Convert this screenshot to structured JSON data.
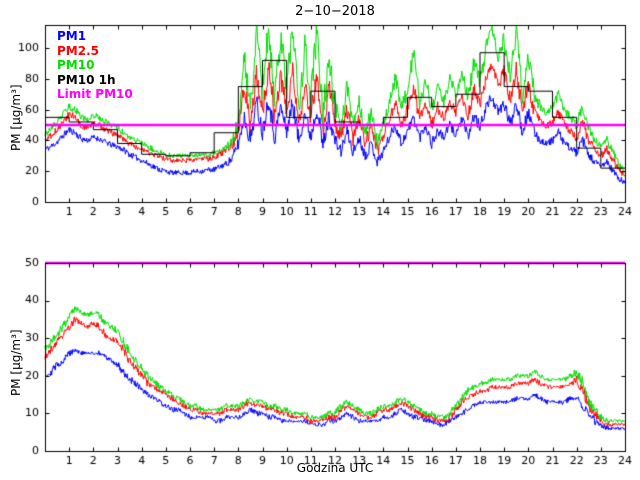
{
  "title": "2−10−2018",
  "xlabel": "Godzina UTC",
  "colors": {
    "pm1": "#0000ff",
    "pm25": "#ff0000",
    "pm10": "#00dd00",
    "pm10_1h": "#000000",
    "limit": "#ff00ff",
    "axis": "#000000",
    "background": "#ffffff"
  },
  "legend": {
    "entries": [
      {
        "label": "PM1",
        "color": "#0000ff"
      },
      {
        "label": "PM2.5",
        "color": "#ff0000"
      },
      {
        "label": "PM10",
        "color": "#00dd00"
      },
      {
        "label": "PM10 1h",
        "color": "#000000"
      },
      {
        "label": "Limit PM10",
        "color": "#ff00ff"
      }
    ]
  },
  "chart_data": [
    {
      "type": "line",
      "title": "2−10−2018",
      "xlabel": "",
      "ylabel": "PM [µg/m³]",
      "xlim": [
        0,
        24
      ],
      "ylim": [
        0,
        115
      ],
      "xticks": [
        1,
        2,
        3,
        4,
        5,
        6,
        7,
        8,
        9,
        10,
        11,
        12,
        13,
        14,
        15,
        16,
        17,
        18,
        19,
        20,
        21,
        22,
        23,
        24
      ],
      "yticks": [
        0,
        20,
        40,
        60,
        80,
        100
      ],
      "x_start": 0,
      "x_step": 0.25,
      "grid": false,
      "legend_position": "top-left-inside",
      "noise": {
        "base": 1.5,
        "factor": 0.18,
        "seed": 11
      },
      "series": [
        {
          "name": "PM1",
          "color": "#0000ff",
          "style": "line",
          "values": [
            34,
            36,
            39,
            43,
            47,
            45,
            41,
            40,
            42,
            41,
            39,
            37,
            36,
            34,
            31,
            29,
            27,
            25,
            23,
            21,
            20,
            19,
            19,
            19,
            19,
            20,
            20,
            21,
            21,
            23,
            25,
            28,
            38,
            55,
            40,
            65,
            45,
            68,
            42,
            62,
            46,
            65,
            40,
            58,
            42,
            62,
            36,
            55,
            40,
            33,
            46,
            32,
            42,
            30,
            38,
            26,
            33,
            42,
            50,
            38,
            46,
            55,
            42,
            50,
            38,
            46,
            42,
            50,
            44,
            54,
            42,
            56,
            48,
            62,
            68,
            58,
            64,
            50,
            66,
            46,
            58,
            45,
            40,
            38,
            40,
            45,
            38,
            35,
            32,
            40,
            30,
            26,
            23,
            26,
            20,
            15,
            12
          ]
        },
        {
          "name": "PM2.5",
          "color": "#ff0000",
          "style": "line",
          "values": [
            40,
            43,
            47,
            52,
            57,
            55,
            50,
            48,
            51,
            50,
            47,
            45,
            43,
            41,
            38,
            36,
            34,
            32,
            31,
            29,
            28,
            27,
            27,
            27,
            27,
            27,
            28,
            28,
            29,
            31,
            33,
            36,
            48,
            75,
            50,
            85,
            58,
            88,
            54,
            82,
            60,
            85,
            50,
            78,
            55,
            85,
            46,
            75,
            50,
            43,
            60,
            41,
            54,
            38,
            48,
            33,
            42,
            54,
            65,
            50,
            60,
            75,
            54,
            65,
            50,
            62,
            54,
            65,
            58,
            70,
            56,
            73,
            64,
            80,
            88,
            76,
            84,
            66,
            86,
            60,
            76,
            58,
            52,
            49,
            52,
            58,
            50,
            46,
            42,
            52,
            40,
            34,
            30,
            34,
            27,
            21,
            17
          ]
        },
        {
          "name": "PM10",
          "color": "#00dd00",
          "style": "line",
          "values": [
            44,
            48,
            52,
            57,
            62,
            60,
            55,
            53,
            56,
            55,
            52,
            50,
            48,
            45,
            42,
            40,
            38,
            36,
            34,
            32,
            31,
            30,
            30,
            30,
            30,
            30,
            31,
            31,
            32,
            34,
            36,
            40,
            55,
            95,
            60,
            110,
            70,
            115,
            65,
            108,
            75,
            112,
            60,
            100,
            68,
            112,
            55,
            95,
            60,
            50,
            75,
            48,
            65,
            45,
            58,
            38,
            50,
            65,
            80,
            60,
            72,
            95,
            65,
            80,
            60,
            75,
            65,
            80,
            70,
            85,
            68,
            90,
            78,
            100,
            112,
            95,
            105,
            80,
            110,
            72,
            95,
            70,
            62,
            58,
            62,
            70,
            60,
            55,
            50,
            62,
            48,
            40,
            36,
            40,
            32,
            25,
            20
          ]
        },
        {
          "name": "PM10 1h",
          "color": "#000000",
          "style": "step",
          "values": [
            55,
            52,
            47,
            38,
            31,
            30,
            32,
            45,
            75,
            92,
            55,
            72,
            52,
            50,
            55,
            68,
            62,
            70,
            97,
            75,
            72,
            55,
            35,
            22
          ]
        },
        {
          "name": "Limit PM10",
          "color": "#ff00ff",
          "style": "hline",
          "value": 50
        }
      ]
    },
    {
      "type": "line",
      "title": "",
      "xlabel": "Godzina UTC",
      "ylabel": "PM [µg/m³]",
      "xlim": [
        0,
        24
      ],
      "ylim": [
        0,
        50
      ],
      "xticks": [
        1,
        2,
        3,
        4,
        5,
        6,
        7,
        8,
        9,
        10,
        11,
        12,
        13,
        14,
        15,
        16,
        17,
        18,
        19,
        20,
        21,
        22,
        23,
        24
      ],
      "yticks": [
        0,
        10,
        20,
        30,
        40,
        50
      ],
      "x_start": 0,
      "x_step": 0.25,
      "grid": false,
      "noise": {
        "base": 0.4,
        "factor": 0.3,
        "seed": 29
      },
      "series": [
        {
          "name": "PM1",
          "color": "#0000ff",
          "style": "line",
          "values": [
            20,
            21,
            23,
            24,
            26,
            27,
            26,
            26,
            26,
            26,
            25,
            24,
            23,
            21,
            19,
            18,
            16,
            15,
            14,
            13,
            12,
            11,
            11,
            10,
            9,
            9,
            9,
            9,
            8,
            8,
            9,
            9,
            9,
            10,
            11,
            10,
            10,
            9,
            9,
            8,
            8,
            8,
            8,
            8,
            7,
            7,
            7,
            8,
            8,
            9,
            10,
            9,
            8,
            8,
            8,
            8,
            9,
            9,
            10,
            11,
            10,
            9,
            9,
            8,
            8,
            7,
            7,
            8,
            9,
            10,
            11,
            12,
            13,
            13,
            13,
            13,
            13,
            13,
            14,
            14,
            14,
            15,
            14,
            13,
            13,
            13,
            13,
            14,
            14,
            12,
            10,
            8,
            7,
            6,
            6,
            6,
            6
          ]
        },
        {
          "name": "PM2.5",
          "color": "#ff0000",
          "style": "line",
          "values": [
            25,
            27,
            29,
            31,
            33,
            35,
            34,
            33,
            34,
            33,
            31,
            30,
            29,
            27,
            24,
            22,
            20,
            18,
            17,
            16,
            15,
            14,
            13,
            12,
            11,
            11,
            10,
            10,
            10,
            10,
            11,
            11,
            11,
            12,
            13,
            12,
            12,
            11,
            11,
            10,
            10,
            9,
            9,
            9,
            8,
            8,
            8,
            9,
            9,
            11,
            12,
            11,
            10,
            9,
            9,
            10,
            11,
            11,
            12,
            13,
            12,
            11,
            10,
            9,
            9,
            8,
            8,
            9,
            11,
            13,
            14,
            15,
            16,
            16,
            17,
            17,
            17,
            17,
            18,
            18,
            18,
            19,
            18,
            17,
            17,
            17,
            17,
            18,
            19,
            16,
            12,
            10,
            8,
            7,
            7,
            7,
            7
          ]
        },
        {
          "name": "PM10",
          "color": "#00dd00",
          "style": "line",
          "values": [
            27,
            29,
            31,
            33,
            36,
            38,
            37,
            36,
            37,
            36,
            34,
            33,
            32,
            29,
            26,
            24,
            22,
            20,
            19,
            17,
            16,
            15,
            14,
            13,
            12,
            12,
            11,
            11,
            11,
            11,
            12,
            12,
            12,
            13,
            14,
            13,
            13,
            12,
            12,
            11,
            11,
            10,
            10,
            10,
            9,
            9,
            9,
            10,
            10,
            12,
            13,
            12,
            11,
            10,
            10,
            11,
            12,
            12,
            13,
            14,
            13,
            12,
            11,
            10,
            10,
            9,
            9,
            10,
            12,
            14,
            16,
            17,
            18,
            18,
            19,
            19,
            19,
            19,
            20,
            20,
            20,
            21,
            20,
            19,
            19,
            19,
            19,
            20,
            21,
            18,
            13,
            11,
            9,
            8,
            8,
            8,
            8
          ]
        },
        {
          "name": "Limit PM10",
          "color": "#ff00ff",
          "style": "hline",
          "value": 50
        }
      ]
    }
  ]
}
